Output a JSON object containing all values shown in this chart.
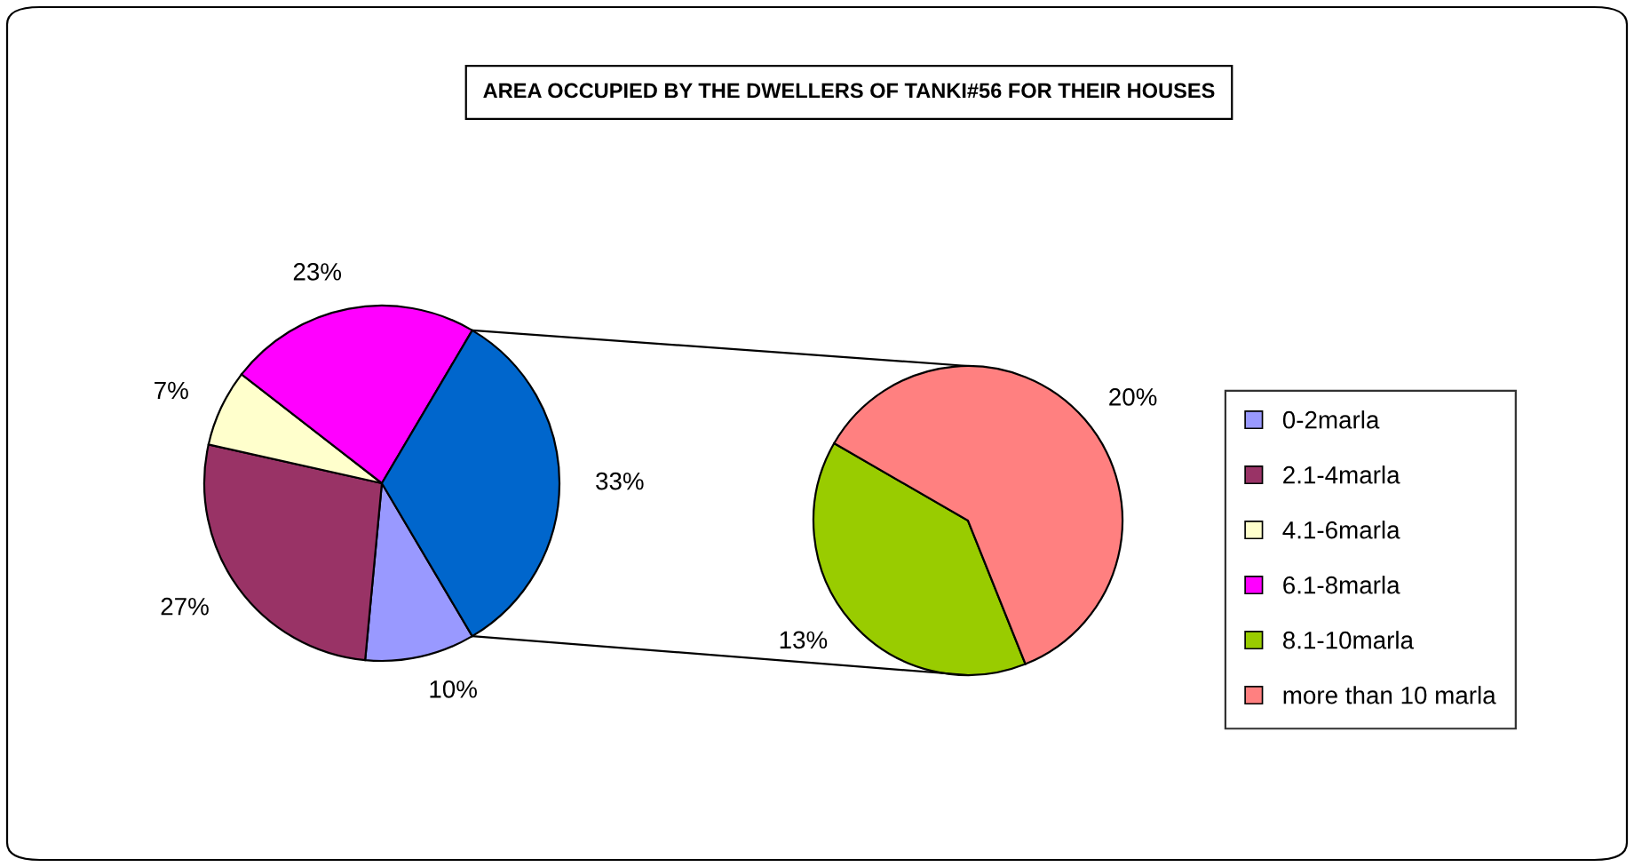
{
  "chart_data": [
    {
      "type": "pie",
      "title": "AREA OCCUPIED BY THE DWELLERS OF TANKI#56 FOR THEIR HOUSES",
      "categories": [
        "0-2marla",
        "2.1-4marla",
        "4.1-6marla",
        "6.1-8marla",
        null
      ],
      "values": [
        10,
        27,
        7,
        23,
        33
      ],
      "value_labels": [
        "10%",
        "27%",
        "7%",
        "23%",
        "33%"
      ],
      "colors": [
        "#9999ff",
        "#993366",
        "#ffffcc",
        "#ff00ff",
        "#0066cc"
      ],
      "legend": "right"
    },
    {
      "type": "pie",
      "categories": [
        "8.1-10marla",
        "more than 10 marla"
      ],
      "values": [
        13,
        20
      ],
      "value_labels": [
        "13%",
        "20%"
      ],
      "colors": [
        "#99cc00",
        "#ff8080"
      ],
      "legend": "right"
    }
  ]
}
